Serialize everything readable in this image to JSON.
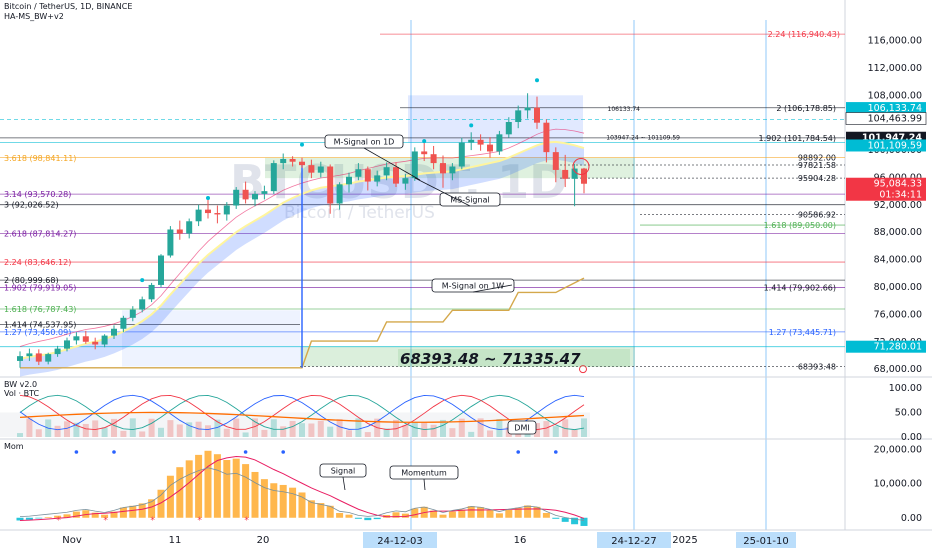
{
  "header": {
    "title": "Bitcoin / TetherUS, 1D, BINANCE",
    "indicator": "HA-MS_BW+v2",
    "watermark_big": "BTCUSDT, 1D",
    "watermark_small": "Bitcoin / TetherUS"
  },
  "price_axis": {
    "ticks": [
      "116,000.00",
      "112,000.00",
      "108,000.00",
      "100,000.00",
      "96,000.00",
      "92,000.00",
      "88,000.00",
      "84,000.00",
      "80,000.00",
      "76,000.00",
      "72,000.00",
      "68,000.00"
    ],
    "labels": [
      {
        "text": "106,133.74",
        "bg": "#00bcd4",
        "fg": "#ffffff"
      },
      {
        "text": "104,463.99",
        "bg": "#ffffff",
        "fg": "#131722"
      },
      {
        "text": "101,947.24",
        "bg": "#131722",
        "fg": "#ffffff"
      },
      {
        "text": "101,109.59",
        "bg": "#00bcd4",
        "fg": "#ffffff"
      },
      {
        "text": "95,084.33",
        "bg": "#f23645",
        "fg": "#ffffff"
      },
      {
        "text": "01:34:11",
        "bg": "#f23645",
        "fg": "#ffffff"
      },
      {
        "text": "71,280.01",
        "bg": "#00bcd4",
        "fg": "#ffffff"
      }
    ]
  },
  "fib_labels": [
    {
      "text": "2.24 (116,940.43)",
      "color": "#f23645"
    },
    {
      "text": "3.618 (98,841.11)",
      "color": "#f5a623"
    },
    {
      "text": "3.14 (93,570.28)",
      "color": "#7b1fa2"
    },
    {
      "text": "3 (92,026.52)",
      "color": "#131722"
    },
    {
      "text": "2.618 (87,814.27)",
      "color": "#7b1fa2"
    },
    {
      "text": "2.24 (83,646.12)",
      "color": "#f23645"
    },
    {
      "text": "2 (80,999.68)",
      "color": "#131722"
    },
    {
      "text": "1.902 (79,919.05)",
      "color": "#7b1fa2"
    },
    {
      "text": "1.618 (76,787.43)",
      "color": "#4caf50"
    },
    {
      "text": "1.414 (74,537.95)",
      "color": "#131722"
    },
    {
      "text": "1.27 (73,450.09)",
      "color": "#2962ff"
    },
    {
      "text": "2 (106,178.85)",
      "color": "#131722"
    },
    {
      "text": "1.902 (101,784.54)",
      "color": "#131722"
    },
    {
      "text": "98892.00",
      "color": "#131722"
    },
    {
      "text": "97821.58",
      "color": "#131722"
    },
    {
      "text": "95904.28",
      "color": "#131722"
    },
    {
      "text": "90586.92",
      "color": "#131722"
    },
    {
      "text": "1.618 (89,050.00)",
      "color": "#4caf50"
    },
    {
      "text": "1.414 (79,902.66)",
      "color": "#131722"
    },
    {
      "text": "1.27 (73,445.71)",
      "color": "#2962ff"
    },
    {
      "text": "68393.48",
      "color": "#131722"
    },
    {
      "text": "106133.74",
      "color": "#131722"
    },
    {
      "text": "103947.24 ~ 101109.59",
      "color": "#131722"
    }
  ],
  "annotations": {
    "msignal_1d": "M-Signal on 1D",
    "ms_signal": "MS-Signal",
    "msignal_1w": "M-Signal on 1W",
    "range_box": "68393.48 ~ 71335.47",
    "dmi": "DMI",
    "signal": "Signal",
    "momentum": "Momentum"
  },
  "bw_pane": {
    "title": "BW v2.0",
    "subtitle": "Vol · BTC",
    "ticks": [
      "100.00",
      "50.00",
      "0.00"
    ]
  },
  "mom_pane": {
    "title": "Mom",
    "ticks": [
      "20,000.00",
      "10,000.00",
      "0.00"
    ]
  },
  "time_axis": {
    "ticks": [
      "Nov",
      "11",
      "20",
      "16",
      "2025"
    ],
    "highlighted": [
      "24-12-03",
      "24-12-27",
      "25-01-10"
    ]
  },
  "colors": {
    "up": "#26a69a",
    "down": "#ef5350",
    "fill_blue": "#2962ff",
    "fill_green": "#4caf50",
    "signal_orange": "#f5a623",
    "mom_orange": "#ffb74d",
    "mom_cyan": "#26c6da"
  },
  "chart_data": {
    "type": "candlestick",
    "title": "Bitcoin / TetherUS, 1D, BINANCE",
    "ylim": [
      67000,
      119000
    ],
    "candles": [
      [
        69200,
        70600,
        68200,
        69900
      ],
      [
        69900,
        71000,
        69200,
        70300
      ],
      [
        70300,
        70900,
        68600,
        69100
      ],
      [
        69100,
        70400,
        68700,
        70200
      ],
      [
        70200,
        71400,
        69800,
        71000
      ],
      [
        71000,
        72600,
        70600,
        72200
      ],
      [
        72200,
        73400,
        71600,
        72800
      ],
      [
        72800,
        73600,
        71700,
        72000
      ],
      [
        72000,
        72600,
        70900,
        71600
      ],
      [
        71600,
        73100,
        71200,
        72900
      ],
      [
        72900,
        74400,
        72400,
        73900
      ],
      [
        73900,
        75800,
        73400,
        75500
      ],
      [
        75500,
        77200,
        75000,
        76700
      ],
      [
        76700,
        78600,
        76300,
        78200
      ],
      [
        78200,
        80600,
        77800,
        80300
      ],
      [
        80300,
        84800,
        80000,
        84600
      ],
      [
        84600,
        88900,
        84300,
        88400
      ],
      [
        88400,
        89700,
        86900,
        87800
      ],
      [
        87800,
        90000,
        87100,
        89600
      ],
      [
        89600,
        92000,
        88900,
        91300
      ],
      [
        91300,
        93200,
        90000,
        90800
      ],
      [
        90800,
        91900,
        89300,
        90600
      ],
      [
        90600,
        92400,
        89700,
        91900
      ],
      [
        91900,
        94600,
        91400,
        94200
      ],
      [
        94200,
        95400,
        92200,
        92800
      ],
      [
        92800,
        94000,
        91800,
        93600
      ],
      [
        93600,
        94800,
        92800,
        94000
      ],
      [
        94000,
        98500,
        93600,
        98100
      ],
      [
        98100,
        99500,
        97200,
        98700
      ],
      [
        98700,
        99100,
        97600,
        98300
      ],
      [
        98300,
        98900,
        97400,
        97800
      ],
      [
        97800,
        98600,
        95900,
        96700
      ],
      [
        96700,
        98300,
        96000,
        97600
      ],
      [
        97600,
        97900,
        90700,
        92200
      ],
      [
        92200,
        95300,
        91300,
        95000
      ],
      [
        95000,
        96700,
        93800,
        96100
      ],
      [
        96100,
        98100,
        95600,
        97200
      ],
      [
        97200,
        97600,
        94100,
        95400
      ],
      [
        95400,
        97000,
        94700,
        96300
      ],
      [
        96300,
        98200,
        95600,
        97500
      ],
      [
        97500,
        98200,
        94600,
        95100
      ],
      [
        95100,
        96500,
        94200,
        95900
      ],
      [
        95900,
        100400,
        95500,
        99800
      ],
      [
        99800,
        101600,
        98400,
        99400
      ],
      [
        99400,
        100600,
        97200,
        98100
      ],
      [
        98100,
        99200,
        94500,
        96600
      ],
      [
        96600,
        98100,
        95600,
        97600
      ],
      [
        97600,
        101800,
        97200,
        101100
      ],
      [
        101100,
        102600,
        100000,
        101500
      ],
      [
        101500,
        102300,
        99900,
        100800
      ],
      [
        100800,
        101900,
        98900,
        99800
      ],
      [
        99800,
        102800,
        99300,
        102300
      ],
      [
        102300,
        104800,
        101800,
        104100
      ],
      [
        104100,
        106500,
        103200,
        105800
      ],
      [
        105800,
        108300,
        104600,
        106200
      ],
      [
        106200,
        107800,
        103100,
        104000
      ],
      [
        104000,
        104500,
        98200,
        99700
      ],
      [
        99700,
        100400,
        95300,
        97100
      ],
      [
        97100,
        99300,
        94600,
        95800
      ],
      [
        95800,
        98000,
        91800,
        97300
      ],
      [
        97300,
        97400,
        93700,
        95084
      ]
    ],
    "ms_signal_1d": [
      69500,
      69800,
      70000,
      70200,
      70500,
      70900,
      71300,
      71700,
      72000,
      72400,
      72900,
      73500,
      74200,
      75000,
      76000,
      77300,
      78900,
      80400,
      81900,
      83400,
      84700,
      85800,
      86900,
      88000,
      88900,
      89700,
      90500,
      91400,
      92300,
      93000,
      93600,
      94100,
      94500,
      94700,
      94900,
      95100,
      95400,
      95600,
      95800,
      96000,
      96100,
      96200,
      96400,
      96600,
      96700,
      96800,
      96900,
      97200,
      97500,
      97800,
      98100,
      98400,
      98900,
      99500,
      100100,
      100700,
      101100,
      101200,
      101000,
      100700,
      100300
    ],
    "m_signal_1w": [
      68200,
      68200,
      68200,
      68200,
      68200,
      68200,
      68200,
      68200,
      68200,
      68200,
      68200,
      68200,
      68200,
      68200,
      68200,
      68200,
      68200,
      68200,
      68200,
      68200,
      68200,
      68200,
      68200,
      68200,
      68200,
      68200,
      68200,
      68200,
      68200,
      68200,
      68200,
      72100,
      72100,
      72100,
      72100,
      72100,
      72100,
      72100,
      72100,
      74900,
      74900,
      74900,
      74900,
      74900,
      74900,
      74900,
      76600,
      76600,
      76600,
      76600,
      76600,
      76600,
      76600,
      79200,
      79200,
      79200,
      79200,
      79200,
      79900,
      80600,
      81300
    ],
    "momentum": [
      -800,
      -600,
      -200,
      200,
      600,
      1000,
      1800,
      2200,
      1500,
      900,
      1800,
      3000,
      3500,
      4200,
      5400,
      8200,
      12300,
      14800,
      16800,
      18400,
      19600,
      18600,
      16900,
      17300,
      15700,
      13400,
      11300,
      10100,
      9600,
      8800,
      7400,
      5100,
      4300,
      3500,
      1400,
      900,
      -300,
      -700,
      -400,
      800,
      1600,
      1200,
      2700,
      3200,
      2100,
      900,
      1800,
      2400,
      3400,
      3100,
      2200,
      1300,
      2300,
      2900,
      3600,
      3200,
      1400,
      -300,
      -1200,
      -1900,
      -2400
    ],
    "series": [
      {
        "name": "Signal",
        "type": "line"
      },
      {
        "name": "Momentum",
        "type": "bar"
      }
    ]
  }
}
